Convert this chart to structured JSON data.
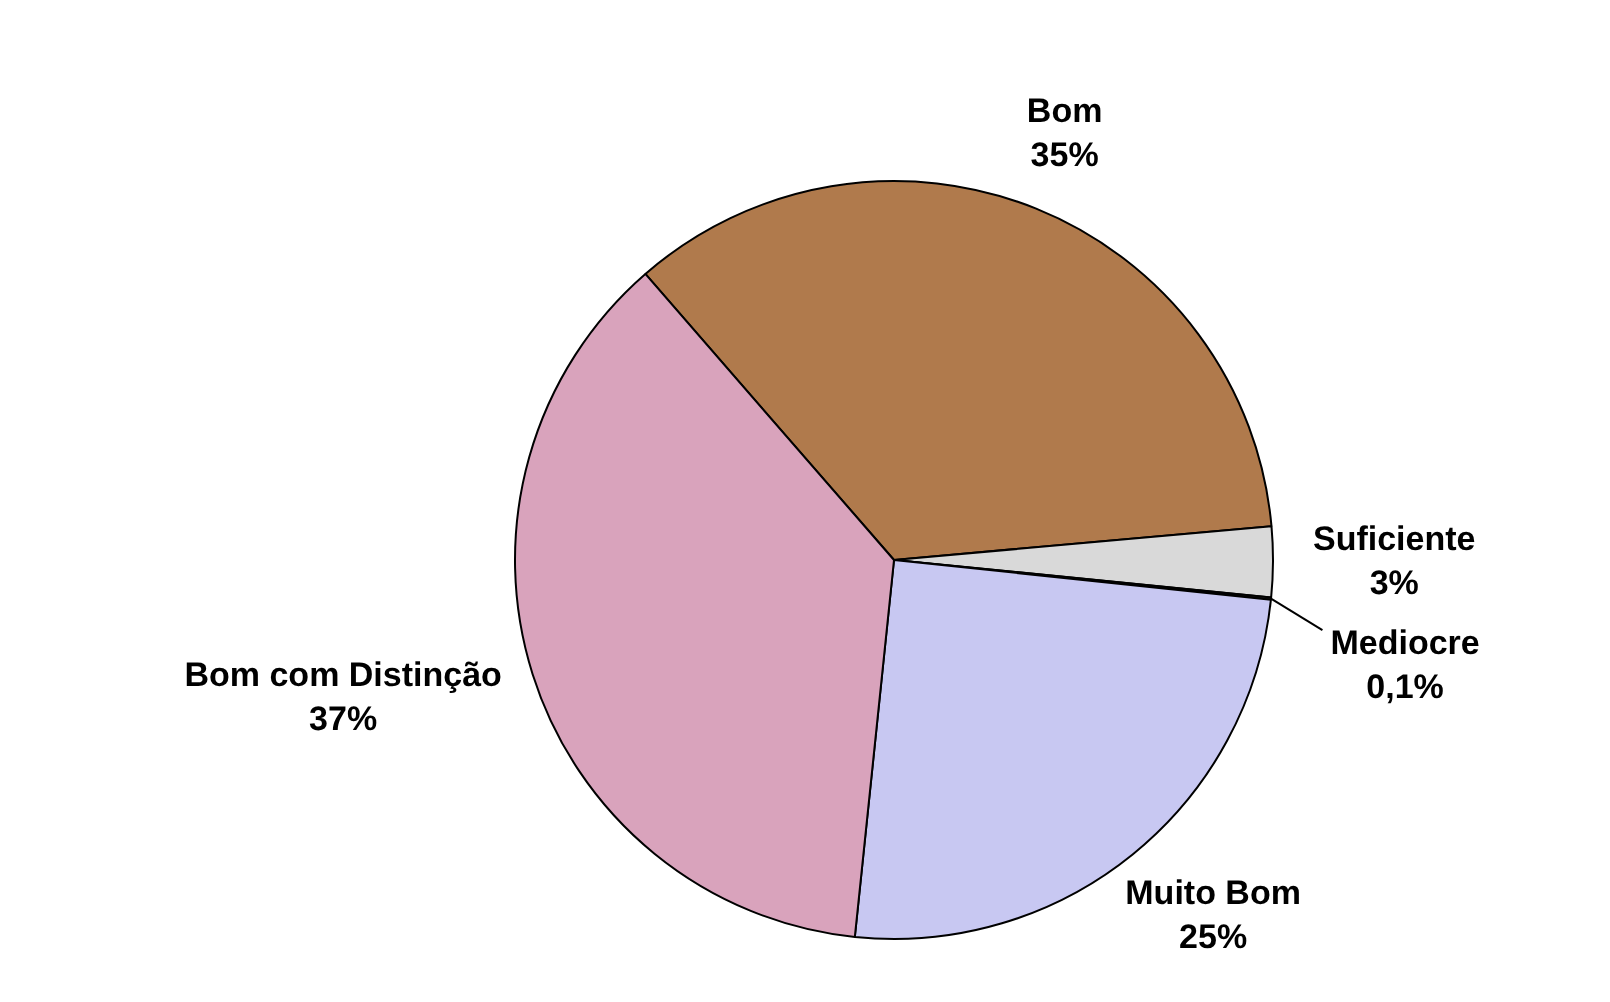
{
  "chart_data": {
    "type": "pie",
    "categories": [
      "Bom",
      "Suficiente",
      "Mediocre",
      "Muito Bom",
      "Bom com Distinção"
    ],
    "values": [
      35,
      3,
      0.1,
      25,
      37
    ],
    "value_labels": [
      "35%",
      "3%",
      "0,1%",
      "25%",
      "37%"
    ],
    "colors": [
      "#b07a4c",
      "#d9d9d9",
      "#404040",
      "#c8c8f2",
      "#d9a3bc"
    ],
    "legend": false
  }
}
